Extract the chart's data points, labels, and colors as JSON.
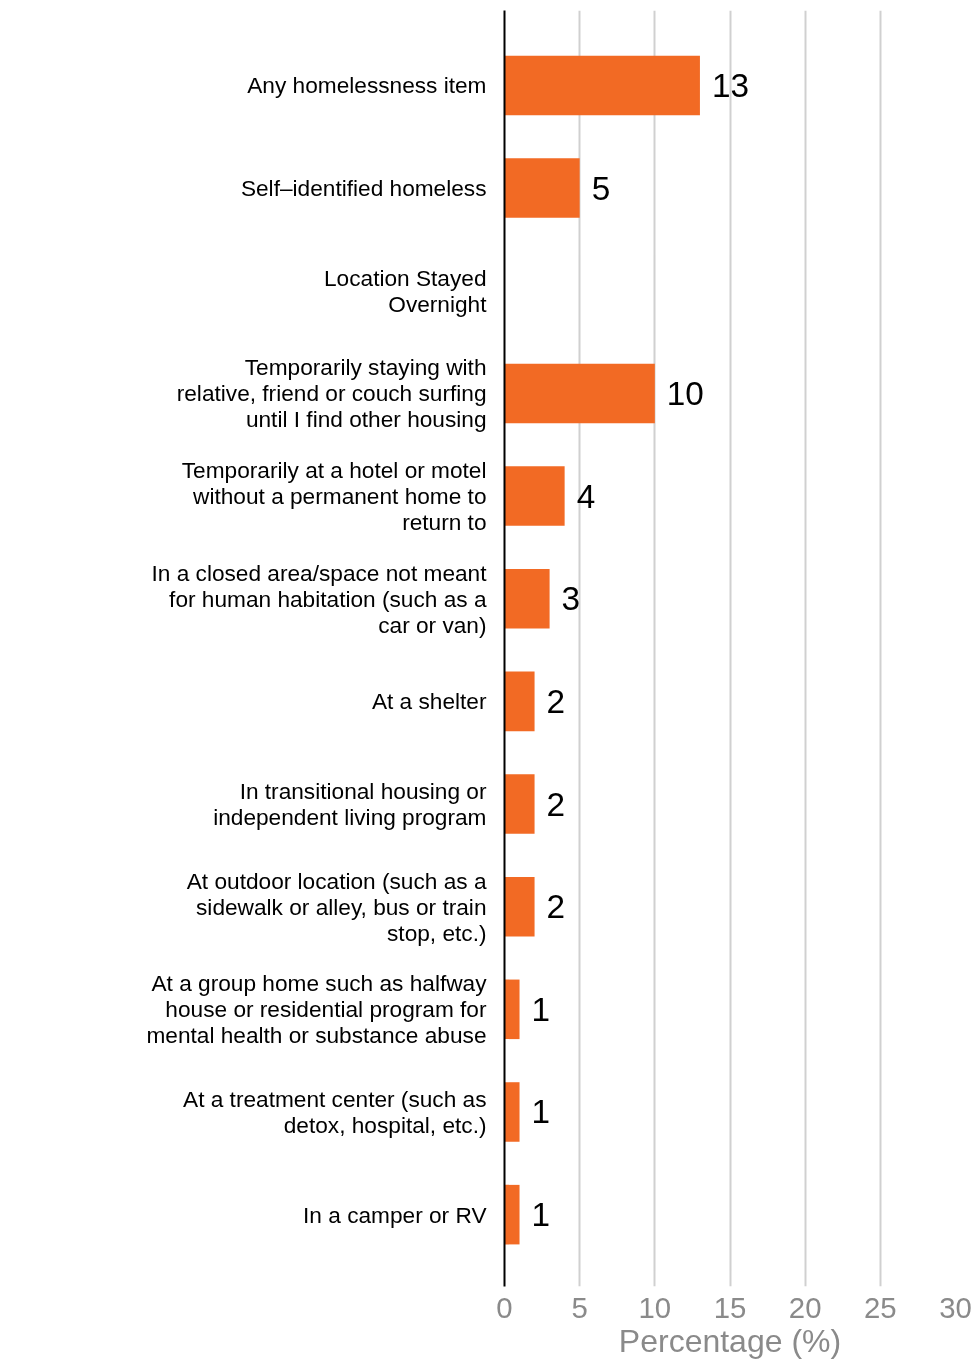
{
  "chart_data": {
    "type": "bar",
    "orientation": "horizontal",
    "categories": [
      "Any homelessness item",
      "Self–identified homeless",
      "Location Stayed Overnight",
      "Temporarily staying with relative, friend or couch surfing until I find other housing",
      "Temporarily at a hotel or motel without a permanent home to return to",
      "In a closed area/space not meant for human habitation (such as a car or van)",
      "At a shelter",
      "In transitional housing or independent living program",
      "At outdoor location (such as a sidewalk or alley, bus or train stop, etc.)",
      "At a group home such as halfway house or residential program for mental health or substance abuse",
      "At a treatment center (such as detox, hospital, etc.)",
      "In a camper or RV"
    ],
    "values": [
      13,
      5,
      null,
      10,
      4,
      3,
      2,
      2,
      2,
      1,
      1,
      1
    ],
    "color": "#f26a24",
    "xlabel": "Percentage (%)",
    "xlim": [
      0,
      30
    ],
    "xticks": [
      0,
      5,
      10,
      15,
      20,
      25,
      30
    ],
    "grid": "x",
    "data_labels": true
  }
}
